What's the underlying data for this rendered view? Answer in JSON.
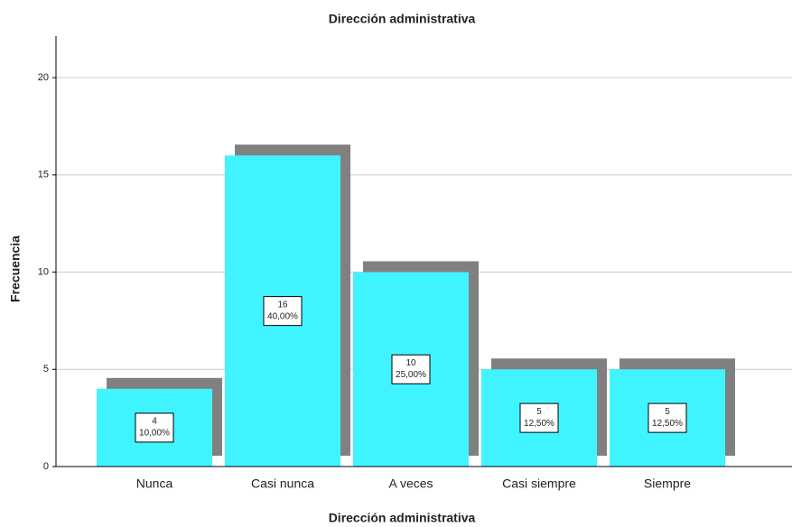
{
  "chart_data": {
    "type": "bar",
    "title": "Dirección administrativa",
    "x_label": "Dirección administrativa",
    "y_label": "Frecuencia",
    "categories": [
      "Nunca",
      "Casi nunca",
      "A veces",
      "Casi siempre",
      "Siempre"
    ],
    "values": [
      4,
      16,
      10,
      5,
      5
    ],
    "percentage_labels": [
      "10,00%",
      "40,00%",
      "25,00%",
      "12,50%",
      "12,50%"
    ],
    "color": "#40f4ff",
    "shadow_color": "#808080",
    "ylim": [
      0,
      22
    ],
    "yticks": [
      0,
      5,
      10,
      15,
      20
    ],
    "grid": true
  }
}
